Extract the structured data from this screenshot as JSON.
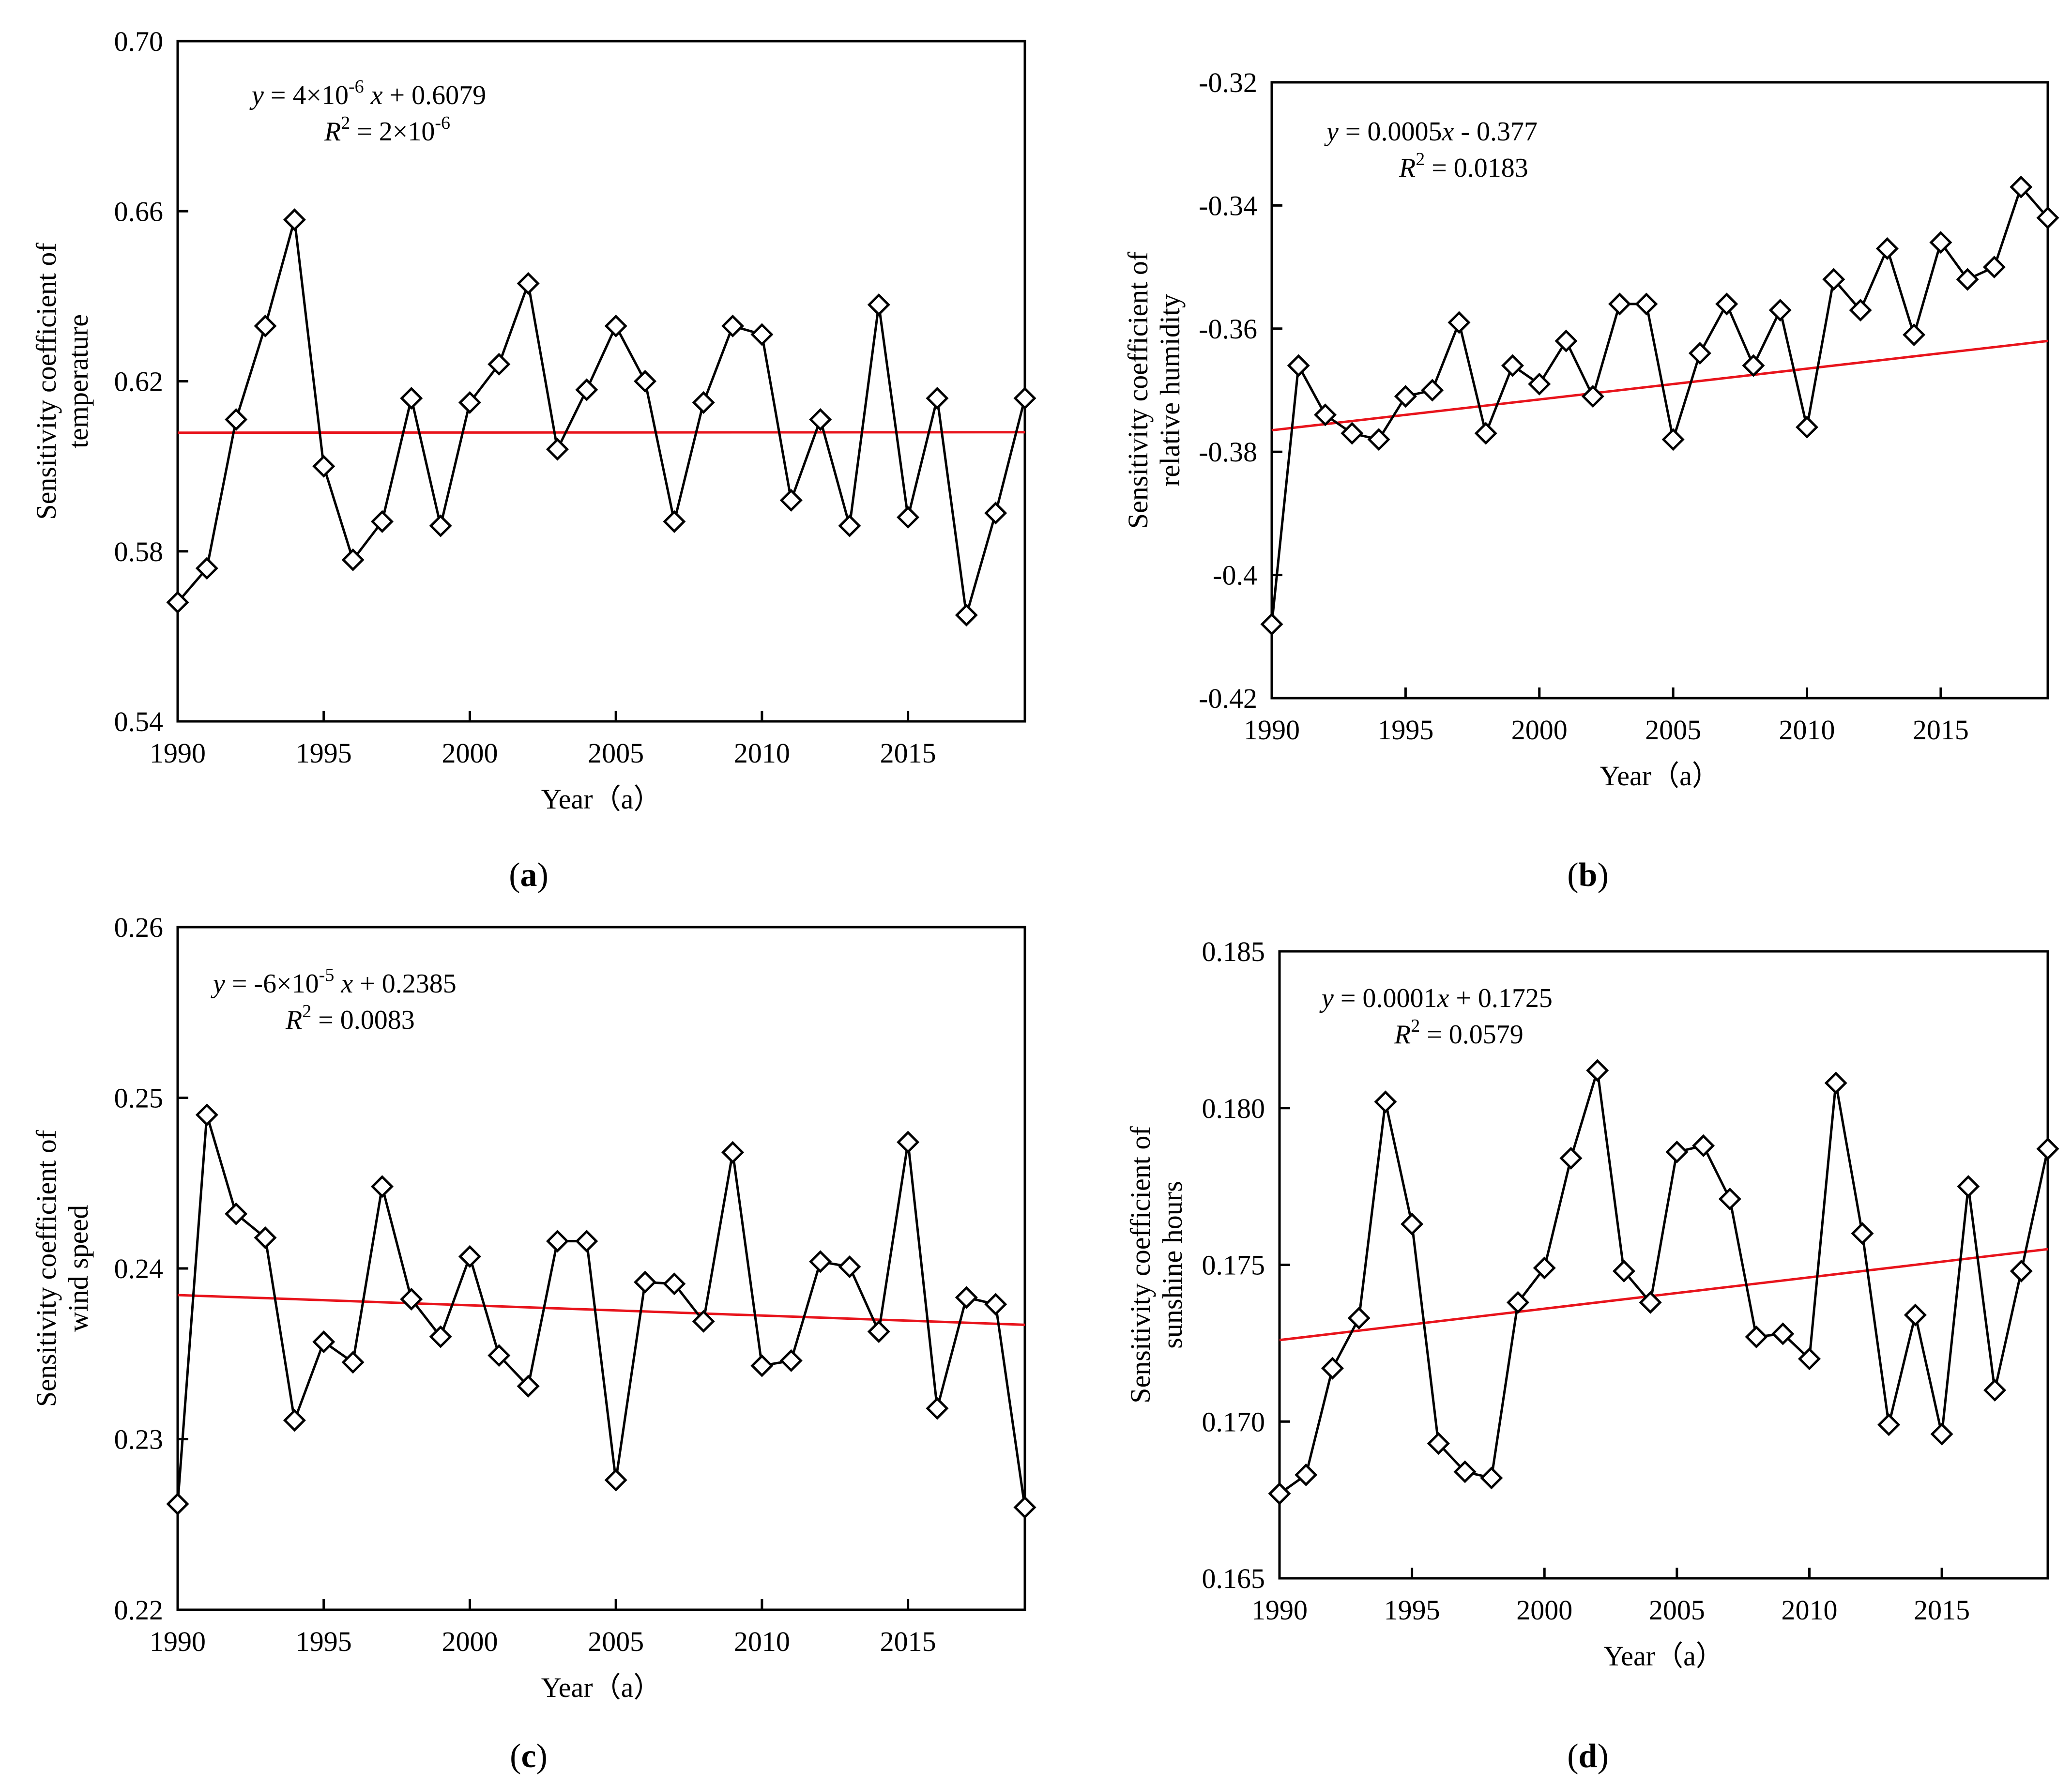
{
  "chart_data": [
    {
      "type": "line",
      "panel_label": "a",
      "title": "",
      "xlabel": "Year（a）",
      "ylabel_lines": [
        "Sensitivity coefficient of",
        "temperature"
      ],
      "xlim": [
        1990,
        2019
      ],
      "ylim": [
        0.54,
        0.7
      ],
      "x_ticks": [
        1990,
        1995,
        2000,
        2005,
        2010,
        2015
      ],
      "y_ticks": [
        "0.54",
        "0.58",
        "0.62",
        "0.66",
        "0.70"
      ],
      "x": [
        1990,
        1991,
        1992,
        1993,
        1994,
        1995,
        1996,
        1997,
        1998,
        1999,
        2000,
        2001,
        2002,
        2003,
        2004,
        2005,
        2006,
        2007,
        2008,
        2009,
        2010,
        2011,
        2012,
        2013,
        2014,
        2015,
        2016,
        2017,
        2018,
        2019
      ],
      "values": [
        0.568,
        0.576,
        0.611,
        0.633,
        0.658,
        0.6,
        0.578,
        0.587,
        0.616,
        0.586,
        0.615,
        0.624,
        0.643,
        0.604,
        0.618,
        0.633,
        0.62,
        0.587,
        0.615,
        0.633,
        0.631,
        0.592,
        0.611,
        0.586,
        0.638,
        0.588,
        0.616,
        0.565,
        0.589,
        0.616
      ],
      "trend": {
        "slope": 4e-06,
        "intercept": 0.6079
      },
      "equation_line1": "= 4×10",
      "equation_line1_exp": "-6",
      "equation_line1_tail": "+ 0.6079",
      "equation_line2": "= 2×10",
      "equation_line2_exp": "-6",
      "grid": false,
      "legend": "none"
    },
    {
      "type": "line",
      "panel_label": "b",
      "title": "",
      "xlabel": "Year（a）",
      "ylabel_lines": [
        "Sensitivity coefficient of",
        "relative humidity"
      ],
      "xlim": [
        1990,
        2019
      ],
      "ylim": [
        -0.42,
        -0.32
      ],
      "x_ticks": [
        1990,
        1995,
        2000,
        2005,
        2010,
        2015
      ],
      "y_ticks": [
        "-0.42",
        "-0.4",
        "-0.38",
        "-0.36",
        "-0.34",
        "-0.32"
      ],
      "x": [
        1990,
        1991,
        1992,
        1993,
        1994,
        1995,
        1996,
        1997,
        1998,
        1999,
        2000,
        2001,
        2002,
        2003,
        2004,
        2005,
        2006,
        2007,
        2008,
        2009,
        2010,
        2011,
        2012,
        2013,
        2014,
        2015,
        2016,
        2017,
        2018,
        2019
      ],
      "values": [
        -0.408,
        -0.366,
        -0.374,
        -0.377,
        -0.378,
        -0.371,
        -0.37,
        -0.359,
        -0.377,
        -0.366,
        -0.369,
        -0.362,
        -0.371,
        -0.356,
        -0.356,
        -0.378,
        -0.364,
        -0.356,
        -0.366,
        -0.357,
        -0.376,
        -0.352,
        -0.357,
        -0.347,
        -0.361,
        -0.346,
        -0.352,
        -0.35,
        -0.337,
        -0.342
      ],
      "trend": {
        "slope": 0.0005,
        "intercept": -0.377
      },
      "equation_line1": "= 0.0005",
      "equation_line1_tail": "- 0.377",
      "equation_line2": "= 0.0183",
      "grid": false,
      "legend": "none"
    },
    {
      "type": "line",
      "panel_label": "c",
      "title": "",
      "xlabel": "Year（a）",
      "ylabel_lines": [
        "Sensitivity coefficient of",
        "wind speed"
      ],
      "xlim": [
        1990,
        2019
      ],
      "ylim": [
        0.22,
        0.26
      ],
      "x_ticks": [
        1990,
        1995,
        2000,
        2005,
        2010,
        2015
      ],
      "y_ticks": [
        "0.22",
        "0.23",
        "0.24",
        "0.25",
        "0.26"
      ],
      "x": [
        1990,
        1991,
        1992,
        1993,
        1994,
        1995,
        1996,
        1997,
        1998,
        1999,
        2000,
        2001,
        2002,
        2003,
        2004,
        2005,
        2006,
        2007,
        2008,
        2009,
        2010,
        2011,
        2012,
        2013,
        2014,
        2015,
        2016,
        2017,
        2018,
        2019
      ],
      "values": [
        0.2262,
        0.249,
        0.2432,
        0.2418,
        0.2311,
        0.2357,
        0.2345,
        0.2448,
        0.2382,
        0.236,
        0.2407,
        0.2349,
        0.2331,
        0.2416,
        0.2416,
        0.2276,
        0.2392,
        0.2391,
        0.2369,
        0.2468,
        0.2343,
        0.2346,
        0.2404,
        0.2401,
        0.2363,
        0.2474,
        0.2318,
        0.2383,
        0.2379,
        0.226
      ],
      "trend": {
        "slope": -6e-05,
        "intercept": 0.2385
      },
      "equation_line1": "= -6×10",
      "equation_line1_exp": "-5",
      "equation_line1_tail": "+ 0.2385",
      "equation_line2": "= 0.0083",
      "grid": false,
      "legend": "none"
    },
    {
      "type": "line",
      "panel_label": "d",
      "title": "",
      "xlabel": "Year（a）",
      "ylabel_lines": [
        "Sensitivity coefficient of",
        "sunshine hours"
      ],
      "xlim": [
        1990,
        2019
      ],
      "ylim": [
        0.165,
        0.185
      ],
      "x_ticks": [
        1990,
        1995,
        2000,
        2005,
        2010,
        2015
      ],
      "y_ticks": [
        "0.165",
        "0.170",
        "0.175",
        "0.180",
        "0.185"
      ],
      "x": [
        1990,
        1991,
        1992,
        1993,
        1994,
        1995,
        1996,
        1997,
        1998,
        1999,
        2000,
        2001,
        2002,
        2003,
        2004,
        2005,
        2006,
        2007,
        2008,
        2009,
        2010,
        2011,
        2012,
        2013,
        2014,
        2015,
        2016,
        2017,
        2018,
        2019
      ],
      "values": [
        0.1677,
        0.1683,
        0.1717,
        0.1733,
        0.1802,
        0.1763,
        0.1693,
        0.1684,
        0.1682,
        0.1738,
        0.1749,
        0.1784,
        0.1812,
        0.1748,
        0.1738,
        0.1786,
        0.1788,
        0.1771,
        0.1727,
        0.1728,
        0.172,
        0.1808,
        0.176,
        0.1699,
        0.1734,
        0.1696,
        0.1775,
        0.171,
        0.1748,
        0.1787
      ],
      "trend": {
        "slope": 0.0001,
        "intercept": 0.1725
      },
      "equation_line1": "= 0.0001",
      "equation_line1_tail": "+ 0.1725",
      "equation_line2": "= 0.0579",
      "grid": false,
      "legend": "none"
    }
  ]
}
